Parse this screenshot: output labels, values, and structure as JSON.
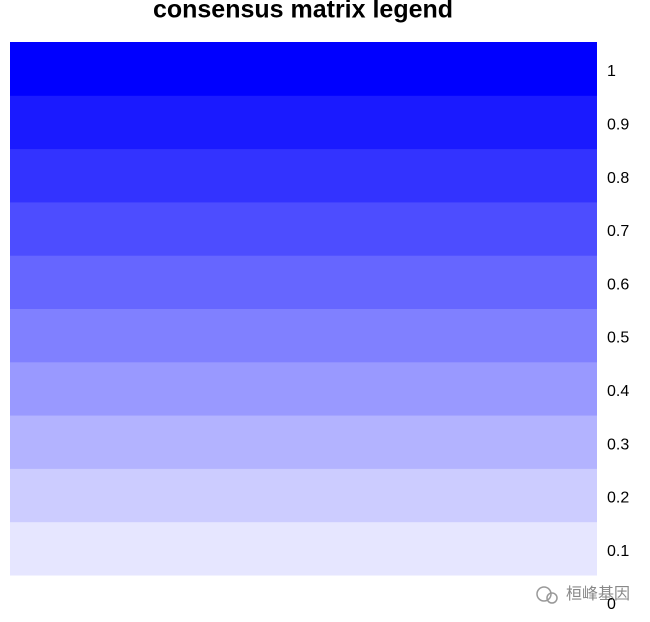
{
  "chart_data": {
    "type": "color-legend",
    "title": "consensus matrix legend",
    "bins": [
      0,
      0.1,
      0.2,
      0.3,
      0.4,
      0.5,
      0.6,
      0.7,
      0.8,
      0.9,
      1
    ],
    "colors": [
      "#E6E6FF",
      "#CCCCFF",
      "#B3B3FF",
      "#9999FF",
      "#8080FF",
      "#6666FF",
      "#4D4DFF",
      "#3333FF",
      "#1A1AFF",
      "#0000FF"
    ],
    "ylim": [
      0,
      1
    ],
    "yticks": [
      0,
      0.1,
      0.2,
      0.3,
      0.4,
      0.5,
      0.6,
      0.7,
      0.8,
      0.9,
      1
    ]
  },
  "watermark": "桓峰基因"
}
